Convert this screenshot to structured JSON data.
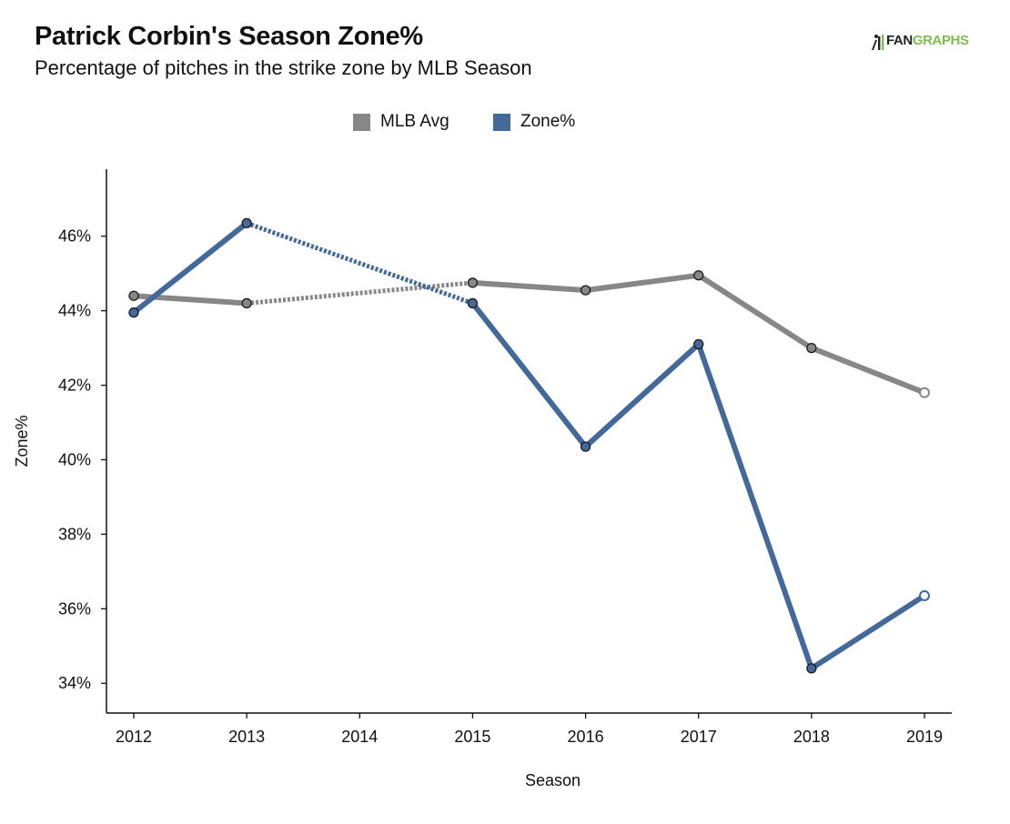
{
  "header": {
    "title": "Patrick Corbin's Season Zone%",
    "subtitle": "Percentage of pitches in the strike zone by MLB Season"
  },
  "logo": {
    "word_part1": "FAN",
    "word_part2": "GRAPHS"
  },
  "colors": {
    "mlb_avg": "#878787",
    "zone": "#43699a",
    "axis": "#111111",
    "logo_green": "#7fbd4e"
  },
  "chart_data": {
    "type": "line",
    "title": "Patrick Corbin's Season Zone%",
    "subtitle": "Percentage of pitches in the strike zone by MLB Season",
    "xlabel": "Season",
    "ylabel": "Zone%",
    "categories": [
      "2012",
      "2013",
      "2014",
      "2015",
      "2016",
      "2017",
      "2018",
      "2019"
    ],
    "ylim": [
      33.2,
      47.8
    ],
    "yticks": [
      34,
      36,
      38,
      40,
      42,
      44,
      46
    ],
    "ytick_labels": [
      "34%",
      "36%",
      "38%",
      "40%",
      "42%",
      "44%",
      "46%"
    ],
    "grid": false,
    "legend_position": "top-center",
    "series": [
      {
        "name": "MLB Avg",
        "color": "#878787",
        "values": [
          44.4,
          44.2,
          null,
          44.75,
          44.55,
          44.95,
          43.0,
          41.8
        ],
        "gap_dotted": true,
        "last_point_hollow": true
      },
      {
        "name": "Zone%",
        "color": "#43699a",
        "values": [
          43.95,
          46.35,
          null,
          44.2,
          40.35,
          43.1,
          34.4,
          36.35
        ],
        "gap_dotted": true,
        "last_point_hollow": true
      }
    ]
  }
}
